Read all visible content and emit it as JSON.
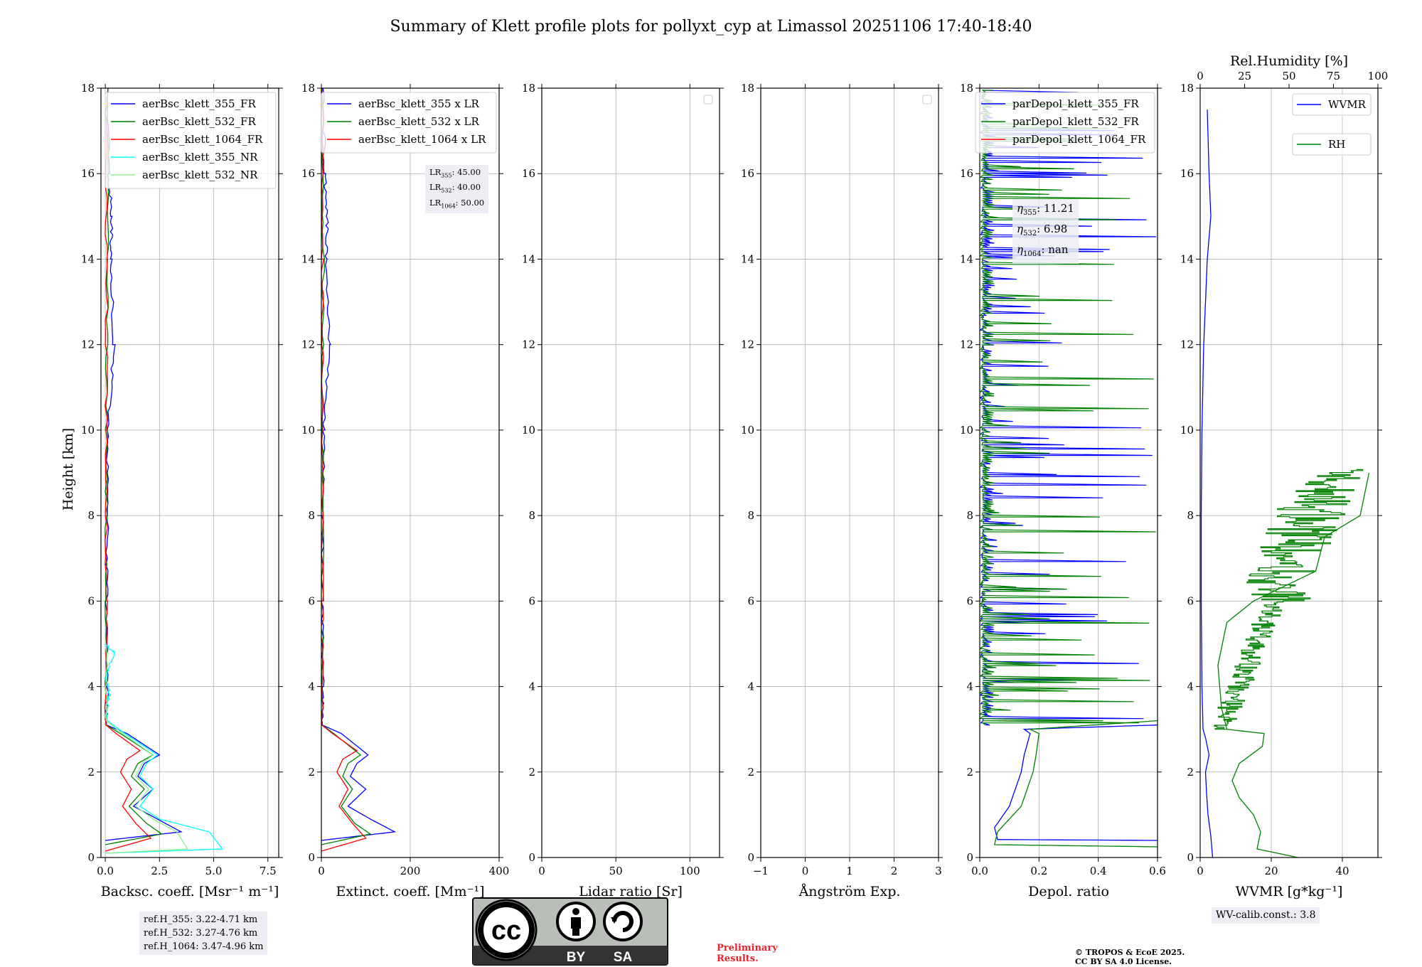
{
  "figure": {
    "title": "Summary of Klett profile plots for pollyxt_cyp at Limassol 20251106 17:40-18:40",
    "ylabel": "Height [km]",
    "preliminary": [
      "Preliminary",
      "Results."
    ],
    "copyright": [
      "© TROPOS & EcoE 2025.",
      "CC BY SA 4.0 License."
    ],
    "license_badge": {
      "by": "BY",
      "sa": "SA",
      "icon": "cc-by-sa-icon"
    },
    "colors": {
      "blue": "#0000ff",
      "green": "#008000",
      "red": "#ff0000",
      "cyan": "#00ffff",
      "lightgreen": "#90ee90",
      "grid": "#b0b0b0",
      "annot_bg": "#eceef4"
    }
  },
  "annotations": {
    "refH": [
      "ref.H_355: 3.22-4.71 km",
      "ref.H_532: 3.27-4.76 km",
      "ref.H_1064: 3.47-4.96 km"
    ],
    "lr": [
      {
        "sub": "355",
        "value": ": 45.00"
      },
      {
        "sub": "532",
        "value": ": 40.00"
      },
      {
        "sub": "1064",
        "value": ": 50.00"
      }
    ],
    "eta": [
      {
        "sub": "355",
        "value": ": 11.21"
      },
      {
        "sub": "532",
        "value": ": 6.98"
      },
      {
        "sub": "1064",
        "value": ": nan"
      }
    ],
    "wv_calib": "WV-calib.const.: 3.8"
  },
  "chart_data": [
    {
      "type": "line",
      "id": "backscatter",
      "xlabel": "Backsc. coeff. [Msr⁻¹ m⁻¹]",
      "xlim": [
        -0.2,
        8.0
      ],
      "ylim": [
        0,
        18
      ],
      "xticks": [
        0,
        2.5,
        5.0,
        7.5
      ],
      "xticklabels": [
        "0.0",
        "2.5",
        "5.0",
        "7.5"
      ],
      "yticks": [
        0,
        2,
        4,
        6,
        8,
        10,
        12,
        14,
        16,
        18
      ],
      "legend": "upper-right",
      "series": [
        {
          "name": "aerBsc_klett_355_FR",
          "color": "#0000ff",
          "points": [
            [
              0.0,
              0.4
            ],
            [
              3.5,
              0.6
            ],
            [
              2.4,
              0.9
            ],
            [
              1.3,
              1.2
            ],
            [
              2.2,
              1.6
            ],
            [
              1.5,
              1.9
            ],
            [
              1.8,
              2.2
            ],
            [
              2.5,
              2.4
            ],
            [
              1.0,
              2.9
            ],
            [
              0.05,
              3.1
            ],
            [
              0.08,
              4
            ],
            [
              0.05,
              6
            ],
            [
              0.1,
              8
            ],
            [
              0.12,
              10
            ],
            [
              0.4,
              12
            ],
            [
              0.25,
              14
            ],
            [
              0.3,
              15
            ],
            [
              0.15,
              16
            ],
            [
              0.1,
              18
            ]
          ]
        },
        {
          "name": "aerBsc_klett_532_FR",
          "color": "#008000",
          "points": [
            [
              0.0,
              0.3
            ],
            [
              2.6,
              0.55
            ],
            [
              1.9,
              0.8
            ],
            [
              1.1,
              1.2
            ],
            [
              1.8,
              1.6
            ],
            [
              1.2,
              1.9
            ],
            [
              1.5,
              2.2
            ],
            [
              2.2,
              2.4
            ],
            [
              0.7,
              2.9
            ],
            [
              0.04,
              3.1
            ],
            [
              0.05,
              6
            ],
            [
              0.06,
              10
            ],
            [
              0.1,
              14
            ],
            [
              0.08,
              18
            ]
          ]
        },
        {
          "name": "aerBsc_klett_1064_FR",
          "color": "#ff0000",
          "points": [
            [
              0.0,
              0.15
            ],
            [
              2.1,
              0.45
            ],
            [
              1.4,
              0.8
            ],
            [
              0.8,
              1.2
            ],
            [
              1.2,
              1.6
            ],
            [
              0.7,
              2.0
            ],
            [
              1.0,
              2.3
            ],
            [
              1.6,
              2.5
            ],
            [
              0.5,
              2.9
            ],
            [
              0.03,
              3.1
            ],
            [
              0.05,
              6
            ],
            [
              0.05,
              10
            ],
            [
              0.06,
              14
            ],
            [
              0.05,
              18
            ]
          ]
        },
        {
          "name": "aerBsc_klett_355_NR",
          "color": "#00ffff",
          "points": [
            [
              0.0,
              0.1
            ],
            [
              5.4,
              0.2
            ],
            [
              4.8,
              0.6
            ],
            [
              2.5,
              0.9
            ],
            [
              1.6,
              1.2
            ],
            [
              2.2,
              1.6
            ],
            [
              1.6,
              1.9
            ],
            [
              1.9,
              2.2
            ],
            [
              2.4,
              2.4
            ],
            [
              0.9,
              2.9
            ],
            [
              0.1,
              3.2
            ],
            [
              0.1,
              3.7
            ],
            [
              0.2,
              3.8
            ],
            [
              0.05,
              4.2
            ],
            [
              0.4,
              4.8
            ],
            [
              0.02,
              5
            ]
          ]
        },
        {
          "name": "aerBsc_klett_532_NR",
          "color": "#90ee90",
          "points": [
            [
              0.0,
              0.1
            ],
            [
              3.8,
              0.2
            ],
            [
              3.3,
              0.6
            ],
            [
              2.2,
              0.9
            ],
            [
              1.4,
              1.2
            ],
            [
              2.0,
              1.6
            ],
            [
              1.4,
              1.9
            ],
            [
              1.7,
              2.2
            ],
            [
              2.2,
              2.4
            ],
            [
              0.8,
              2.9
            ],
            [
              0.05,
              3.2
            ],
            [
              0.05,
              5
            ]
          ]
        }
      ]
    },
    {
      "type": "line",
      "id": "extinction",
      "xlabel": "Extinct. coeff. [Mm⁻¹]",
      "xlim": [
        0,
        400
      ],
      "ylim": [
        0,
        18
      ],
      "xticks": [
        0,
        200,
        400
      ],
      "xticklabels": [
        "0",
        "200",
        "400"
      ],
      "yticks": [
        0,
        2,
        4,
        6,
        8,
        10,
        12,
        14,
        16,
        18
      ],
      "legend": "upper-right",
      "series": [
        {
          "name": "aerBsc_klett_355 x LR",
          "color": "#0000ff",
          "points": [
            [
              0,
              0.4
            ],
            [
              165,
              0.6
            ],
            [
              110,
              0.9
            ],
            [
              60,
              1.2
            ],
            [
              100,
              1.6
            ],
            [
              65,
              1.9
            ],
            [
              80,
              2.2
            ],
            [
              105,
              2.4
            ],
            [
              45,
              2.9
            ],
            [
              2,
              3.1
            ],
            [
              3,
              4
            ],
            [
              2,
              6
            ],
            [
              4,
              8
            ],
            [
              5,
              10
            ],
            [
              18,
              12
            ],
            [
              10,
              14
            ],
            [
              14,
              15
            ],
            [
              7,
              16
            ],
            [
              4,
              18
            ]
          ]
        },
        {
          "name": "aerBsc_klett_532 x LR",
          "color": "#008000",
          "points": [
            [
              0,
              0.3
            ],
            [
              110,
              0.55
            ],
            [
              75,
              0.8
            ],
            [
              45,
              1.2
            ],
            [
              70,
              1.6
            ],
            [
              48,
              1.9
            ],
            [
              60,
              2.2
            ],
            [
              88,
              2.4
            ],
            [
              28,
              2.9
            ],
            [
              2,
              3.1
            ],
            [
              2,
              6
            ],
            [
              3,
              10
            ],
            [
              4,
              14
            ],
            [
              3,
              18
            ]
          ]
        },
        {
          "name": "aerBsc_klett_1064 x LR",
          "color": "#ff0000",
          "points": [
            [
              0,
              0.15
            ],
            [
              100,
              0.45
            ],
            [
              70,
              0.8
            ],
            [
              40,
              1.2
            ],
            [
              60,
              1.6
            ],
            [
              35,
              2.0
            ],
            [
              48,
              2.3
            ],
            [
              80,
              2.5
            ],
            [
              25,
              2.9
            ],
            [
              1,
              3.1
            ],
            [
              2,
              6
            ],
            [
              2,
              10
            ],
            [
              3,
              14
            ],
            [
              2,
              18
            ]
          ]
        }
      ]
    },
    {
      "type": "line",
      "id": "lidar_ratio",
      "xlabel": "Lidar ratio [Sr]",
      "xlim": [
        0,
        120
      ],
      "ylim": [
        0,
        18
      ],
      "xticks": [
        0,
        50,
        100
      ],
      "xticklabels": [
        "0",
        "50",
        "100"
      ],
      "yticks": [
        0,
        2,
        4,
        6,
        8,
        10,
        12,
        14,
        16,
        18
      ],
      "legend": "upper-right",
      "series": []
    },
    {
      "type": "line",
      "id": "angstrom",
      "xlabel": "Ångström Exp.",
      "xlim": [
        -1,
        3
      ],
      "ylim": [
        0,
        18
      ],
      "xticks": [
        -1,
        0,
        1,
        2,
        3
      ],
      "xticklabels": [
        "−1",
        "0",
        "1",
        "2",
        "3"
      ],
      "yticks": [
        0,
        2,
        4,
        6,
        8,
        10,
        12,
        14,
        16,
        18
      ],
      "legend": "upper-right",
      "series": []
    },
    {
      "type": "line",
      "id": "depol",
      "xlabel": "Depol. ratio",
      "xlim": [
        0,
        0.6
      ],
      "ylim": [
        0,
        18
      ],
      "xticks": [
        0,
        0.2,
        0.4,
        0.6
      ],
      "xticklabels": [
        "0.0",
        "0.2",
        "0.4",
        "0.6"
      ],
      "yticks": [
        0,
        2,
        4,
        6,
        8,
        10,
        12,
        14,
        16,
        18
      ],
      "legend": "upper-right",
      "series": [
        {
          "name": "parDepol_klett_355_FR",
          "color": "#0000ff",
          "points": [
            [
              0.6,
              0.4
            ],
            [
              0.06,
              0.42
            ],
            [
              0.05,
              0.7
            ],
            [
              0.08,
              1.0
            ],
            [
              0.1,
              1.2
            ],
            [
              0.12,
              1.6
            ],
            [
              0.14,
              2.0
            ],
            [
              0.15,
              2.4
            ],
            [
              0.17,
              2.9
            ],
            [
              0.15,
              3.0
            ],
            [
              0.6,
              3.1
            ]
          ],
          "noise_from_km": 3.1,
          "noise_max": 0.6
        },
        {
          "name": "parDepol_klett_532_FR",
          "color": "#008000",
          "points": [
            [
              0.6,
              0.25
            ],
            [
              0.05,
              0.3
            ],
            [
              0.06,
              0.6
            ],
            [
              0.1,
              0.9
            ],
            [
              0.14,
              1.2
            ],
            [
              0.16,
              1.6
            ],
            [
              0.18,
              2.0
            ],
            [
              0.19,
              2.4
            ],
            [
              0.2,
              2.9
            ],
            [
              0.17,
              3.0
            ],
            [
              0.6,
              3.2
            ]
          ],
          "noise_from_km": 3.1,
          "noise_max": 0.6
        },
        {
          "name": "parDepol_klett_1064_FR",
          "color": "#ff0000",
          "points": []
        }
      ]
    },
    {
      "type": "line",
      "id": "wvmr",
      "xlabel": "WVMR [g*kg⁻¹]",
      "xlim": [
        0,
        50
      ],
      "ylim": [
        0,
        18
      ],
      "xticks": [
        0,
        20,
        40
      ],
      "xticklabels": [
        "0",
        "20",
        "40"
      ],
      "yticks": [
        0,
        2,
        4,
        6,
        8,
        10,
        12,
        14,
        16,
        18
      ],
      "top_axis": {
        "label": "Rel.Humidity [%]",
        "xlim": [
          0,
          100
        ],
        "xticks": [
          0,
          25,
          50,
          75,
          100
        ],
        "xticklabels": [
          "0",
          "25",
          "50",
          "75",
          "100"
        ]
      },
      "series": [
        {
          "name": "WVMR",
          "color": "#0000ff",
          "axis": "bottom",
          "points": [
            [
              3.5,
              0.0
            ],
            [
              3.0,
              0.5
            ],
            [
              2.2,
              1.0
            ],
            [
              1.8,
              1.5
            ],
            [
              1.5,
              2.0
            ],
            [
              2.5,
              2.4
            ],
            [
              1.5,
              2.8
            ],
            [
              0.8,
              3.0
            ],
            [
              0.5,
              4.0
            ],
            [
              0.3,
              6.0
            ],
            [
              0.3,
              8.0
            ],
            [
              0.5,
              10.0
            ],
            [
              1.0,
              12.0
            ],
            [
              2.0,
              14.0
            ],
            [
              3.0,
              15.0
            ],
            [
              2.5,
              16.0
            ],
            [
              2.0,
              17.5
            ]
          ]
        },
        {
          "name": "RH",
          "color": "#008000",
          "axis": "top",
          "points": [
            [
              55,
              0.0
            ],
            [
              32,
              0.2
            ],
            [
              34,
              0.6
            ],
            [
              30,
              1.0
            ],
            [
              22,
              1.4
            ],
            [
              18,
              1.8
            ],
            [
              22,
              2.2
            ],
            [
              35,
              2.6
            ],
            [
              36,
              2.9
            ],
            [
              15,
              3.0
            ],
            [
              12,
              3.5
            ],
            [
              10,
              4.5
            ],
            [
              15,
              5.5
            ],
            [
              30,
              6.0
            ],
            [
              65,
              6.7
            ],
            [
              70,
              7.5
            ],
            [
              90,
              8.0
            ],
            [
              95,
              9.0
            ]
          ],
          "noise_from_km": 3.0,
          "noise_until_km": 9.1
        }
      ]
    }
  ]
}
